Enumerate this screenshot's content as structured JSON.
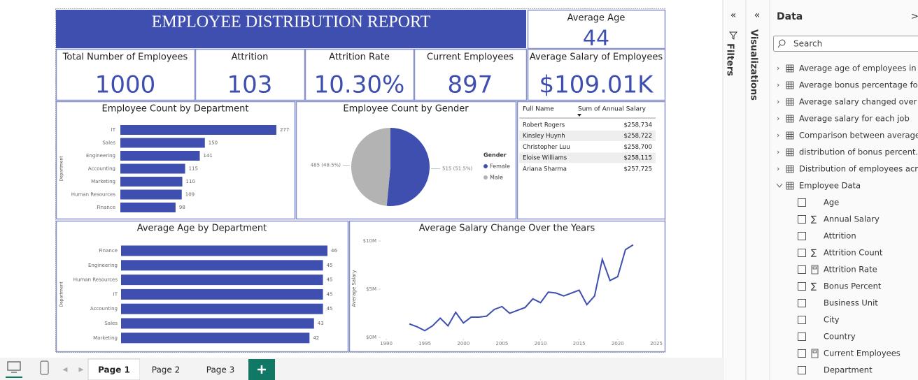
{
  "report_title": "EMPLOYEE DISTRIBUTION REPORT",
  "kpis": [
    {
      "label": "Average Age",
      "value": "44"
    },
    {
      "label": "Total Number of Employees",
      "value": "1000"
    },
    {
      "label": "Attrition",
      "value": "103"
    },
    {
      "label": "Attrition Rate",
      "value": "10.30%"
    },
    {
      "label": "Current Employees",
      "value": "897"
    },
    {
      "label": "Average Salary of Employees",
      "value": "$109.01K"
    }
  ],
  "chart_data": [
    {
      "type": "bar",
      "orientation": "horizontal",
      "title": "Employee Count by Department",
      "y_label": "Department",
      "categories": [
        "IT",
        "Sales",
        "Engineering",
        "Accounting",
        "Marketing",
        "Human Resources",
        "Finance"
      ],
      "values": [
        277,
        150,
        141,
        115,
        110,
        109,
        98
      ],
      "color": "#3f4fb0"
    },
    {
      "type": "pie",
      "title": "Employee Count by Gender",
      "legend_title": "Gender",
      "categories": [
        "Female",
        "Male"
      ],
      "values": [
        515,
        485
      ],
      "value_labels": [
        "515 (51.5%)",
        "485 (48.5%)"
      ],
      "colors": [
        "#3f4fb0",
        "#b3b3b3"
      ]
    },
    {
      "type": "bar",
      "orientation": "horizontal",
      "title": "Average Age by Department",
      "y_label": "Department",
      "categories": [
        "Finance",
        "Engineering",
        "Human Resources",
        "IT",
        "Accounting",
        "Sales",
        "Marketing"
      ],
      "values": [
        46,
        45,
        45,
        45,
        45,
        43,
        42
      ],
      "color": "#3f4fb0"
    },
    {
      "type": "line",
      "title": "Average Salary Change Over the Years",
      "y_label": "Average Salary",
      "color": "#3f4fb0",
      "x": [
        1993,
        1994,
        1995,
        1996,
        1997,
        1998,
        1999,
        2000,
        2001,
        2002,
        2003,
        2004,
        2005,
        2006,
        2007,
        2008,
        2009,
        2010,
        2011,
        2012,
        2013,
        2014,
        2015,
        2016,
        2017,
        2018,
        2019,
        2020,
        2021,
        2022
      ],
      "values": [
        1400000,
        1100000,
        700000,
        1200000,
        2000000,
        1200000,
        2600000,
        1500000,
        2100000,
        2100000,
        2200000,
        2900000,
        3200000,
        2500000,
        2800000,
        3100000,
        4000000,
        3600000,
        4700000,
        4600000,
        4300000,
        4600000,
        4900000,
        3400000,
        4300000,
        8100000,
        5900000,
        6300000,
        9100000,
        9600000
      ],
      "xlim": [
        1990,
        2025
      ],
      "xticks": [
        1990,
        1995,
        2000,
        2005,
        2010,
        2015,
        2020,
        2025
      ],
      "ylim": [
        0,
        10000000
      ],
      "yticks": [
        {
          "value": 0,
          "label": "$0M"
        },
        {
          "value": 5000000,
          "label": "$5M"
        },
        {
          "value": 10000000,
          "label": "$10M"
        }
      ]
    }
  ],
  "salary_table": {
    "columns": [
      "Full Name",
      "Sum of Annual Salary"
    ],
    "rows": [
      [
        "Robert Rogers",
        "$258,734"
      ],
      [
        "Kinsley Huynh",
        "$258,722"
      ],
      [
        "Christopher Luu",
        "$258,700"
      ],
      [
        "Eloise Williams",
        "$258,115"
      ],
      [
        "Ariana Sharma",
        "$257,725"
      ]
    ]
  },
  "panes": {
    "filters": "Filters",
    "visualizations": "Visualizations"
  },
  "data_pane": {
    "title": "Data",
    "search": "Search",
    "tables": [
      "Average age of employees in ...",
      "Average bonus percentage fo...",
      "Average salary changed over t...",
      "Average salary for each job",
      "Comparison between average...",
      "distribution of bonus percent...",
      "Distribution of employees acr..."
    ],
    "expanded_table": "Employee Data",
    "fields": [
      {
        "name": "Age"
      },
      {
        "name": "Annual Salary",
        "icon": "sigma"
      },
      {
        "name": "Attrition"
      },
      {
        "name": "Attrition Count",
        "icon": "sigma"
      },
      {
        "name": "Attrition Rate",
        "icon": "calc"
      },
      {
        "name": "Bonus Percent",
        "icon": "sigma"
      },
      {
        "name": "Business Unit"
      },
      {
        "name": "City"
      },
      {
        "name": "Country"
      },
      {
        "name": "Current Employees",
        "icon": "calc"
      },
      {
        "name": "Department"
      }
    ]
  },
  "page_tabs": [
    "Page 1",
    "Page 2",
    "Page 3"
  ]
}
